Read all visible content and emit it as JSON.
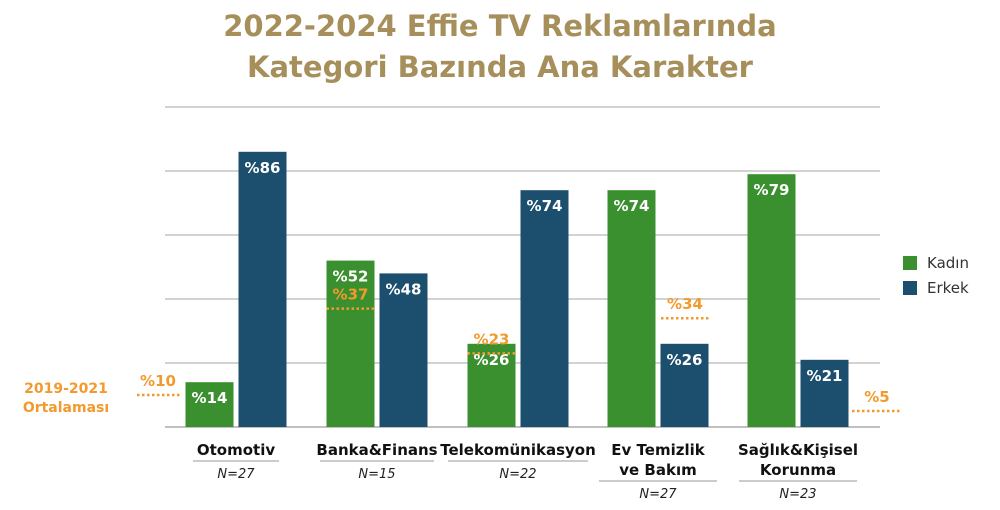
{
  "title": [
    "2022-2024 Effie TV Reklamlarında",
    "Kategori Bazında Ana Karakter"
  ],
  "colors": {
    "kadin": "#3a8f2e",
    "erkek": "#1c4e6e",
    "avg": "#f29a2e",
    "title": "#a68f5a"
  },
  "avg_label": [
    "2019-2021",
    "Ortalaması"
  ],
  "chart_data": {
    "type": "bar",
    "title": "2022-2024 Effie TV Reklamlarında Kategori Bazında Ana Karakter",
    "categories": [
      {
        "label": [
          "Otomotiv"
        ],
        "n": "N=27"
      },
      {
        "label": [
          "Banka&Finans"
        ],
        "n": "N=15"
      },
      {
        "label": [
          "Telekomünikasyon"
        ],
        "n": "N=22"
      },
      {
        "label": [
          "Ev Temizlik",
          "ve Bakım"
        ],
        "n": "N=27"
      },
      {
        "label": [
          "Sağlık&Kişisel",
          "Korunma"
        ],
        "n": "N=23"
      }
    ],
    "series": [
      {
        "name": "Kadın",
        "values": [
          14,
          52,
          26,
          74,
          79
        ]
      },
      {
        "name": "Erkek",
        "values": [
          86,
          48,
          74,
          26,
          21
        ]
      }
    ],
    "average_2019_2021": [
      10,
      37,
      23,
      34,
      5
    ],
    "value_prefix": "%",
    "ylim": [
      0,
      100
    ],
    "grid": true,
    "legend": "right"
  }
}
